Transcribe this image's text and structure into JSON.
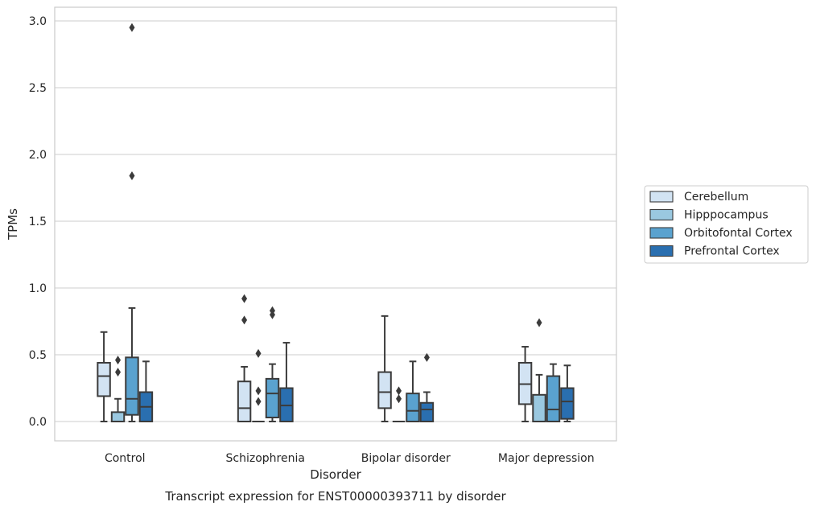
{
  "chart_data": {
    "type": "boxplot",
    "title": "Transcript expression for ENST00000393711 by disorder",
    "xlabel": "Disorder",
    "ylabel": "TPMs",
    "ylim": [
      -0.14,
      3.1
    ],
    "yticks": [
      0.0,
      0.5,
      1.0,
      1.5,
      2.0,
      2.5,
      3.0
    ],
    "ytick_labels": [
      "0.0",
      "0.5",
      "1.0",
      "1.5",
      "2.0",
      "2.5",
      "3.0"
    ],
    "grid": true,
    "legend_position": "right",
    "categories": [
      "Control",
      "Schizophrenia",
      "Bipolar disorder",
      "Major depression"
    ],
    "series": [
      {
        "name": "Cerebellum",
        "color": "#d2e3f3",
        "boxes": [
          {
            "whislo": 0.0,
            "q1": 0.19,
            "med": 0.34,
            "q3": 0.44,
            "whishi": 0.67,
            "fliers": []
          },
          {
            "whislo": 0.0,
            "q1": 0.0,
            "med": 0.1,
            "q3": 0.3,
            "whishi": 0.41,
            "fliers": [
              0.76,
              0.92
            ]
          },
          {
            "whislo": 0.0,
            "q1": 0.1,
            "med": 0.22,
            "q3": 0.37,
            "whishi": 0.79,
            "fliers": []
          },
          {
            "whislo": 0.0,
            "q1": 0.13,
            "med": 0.28,
            "q3": 0.44,
            "whishi": 0.56,
            "fliers": []
          }
        ]
      },
      {
        "name": "Hipppocampus",
        "color": "#9ac8e0",
        "boxes": [
          {
            "whislo": 0.0,
            "q1": 0.0,
            "med": 0.0,
            "q3": 0.07,
            "whishi": 0.17,
            "fliers": [
              0.37,
              0.46
            ]
          },
          {
            "whislo": 0.0,
            "q1": 0.0,
            "med": 0.0,
            "q3": 0.0,
            "whishi": 0.0,
            "fliers": [
              0.15,
              0.23,
              0.51
            ]
          },
          {
            "whislo": 0.0,
            "q1": 0.0,
            "med": 0.0,
            "q3": 0.0,
            "whishi": 0.0,
            "fliers": [
              0.17,
              0.23
            ]
          },
          {
            "whislo": 0.0,
            "q1": 0.0,
            "med": 0.0,
            "q3": 0.2,
            "whishi": 0.35,
            "fliers": [
              0.74
            ]
          }
        ]
      },
      {
        "name": "Orbitofontal Cortex",
        "color": "#5aa2cf",
        "boxes": [
          {
            "whislo": 0.0,
            "q1": 0.05,
            "med": 0.17,
            "q3": 0.48,
            "whishi": 0.85,
            "fliers": [
              1.84,
              2.95
            ]
          },
          {
            "whislo": 0.0,
            "q1": 0.03,
            "med": 0.21,
            "q3": 0.32,
            "whishi": 0.43,
            "fliers": [
              0.8,
              0.83
            ]
          },
          {
            "whislo": 0.0,
            "q1": 0.0,
            "med": 0.08,
            "q3": 0.21,
            "whishi": 0.45,
            "fliers": []
          },
          {
            "whislo": 0.0,
            "q1": 0.0,
            "med": 0.09,
            "q3": 0.34,
            "whishi": 0.43,
            "fliers": []
          }
        ]
      },
      {
        "name": "Prefrontal Cortex",
        "color": "#2a6fb0",
        "boxes": [
          {
            "whislo": 0.0,
            "q1": 0.0,
            "med": 0.11,
            "q3": 0.22,
            "whishi": 0.45,
            "fliers": []
          },
          {
            "whislo": 0.0,
            "q1": 0.0,
            "med": 0.12,
            "q3": 0.25,
            "whishi": 0.59,
            "fliers": []
          },
          {
            "whislo": 0.0,
            "q1": 0.0,
            "med": 0.09,
            "q3": 0.14,
            "whishi": 0.22,
            "fliers": [
              0.48
            ]
          },
          {
            "whislo": 0.0,
            "q1": 0.02,
            "med": 0.15,
            "q3": 0.25,
            "whishi": 0.42,
            "fliers": []
          }
        ]
      }
    ]
  }
}
